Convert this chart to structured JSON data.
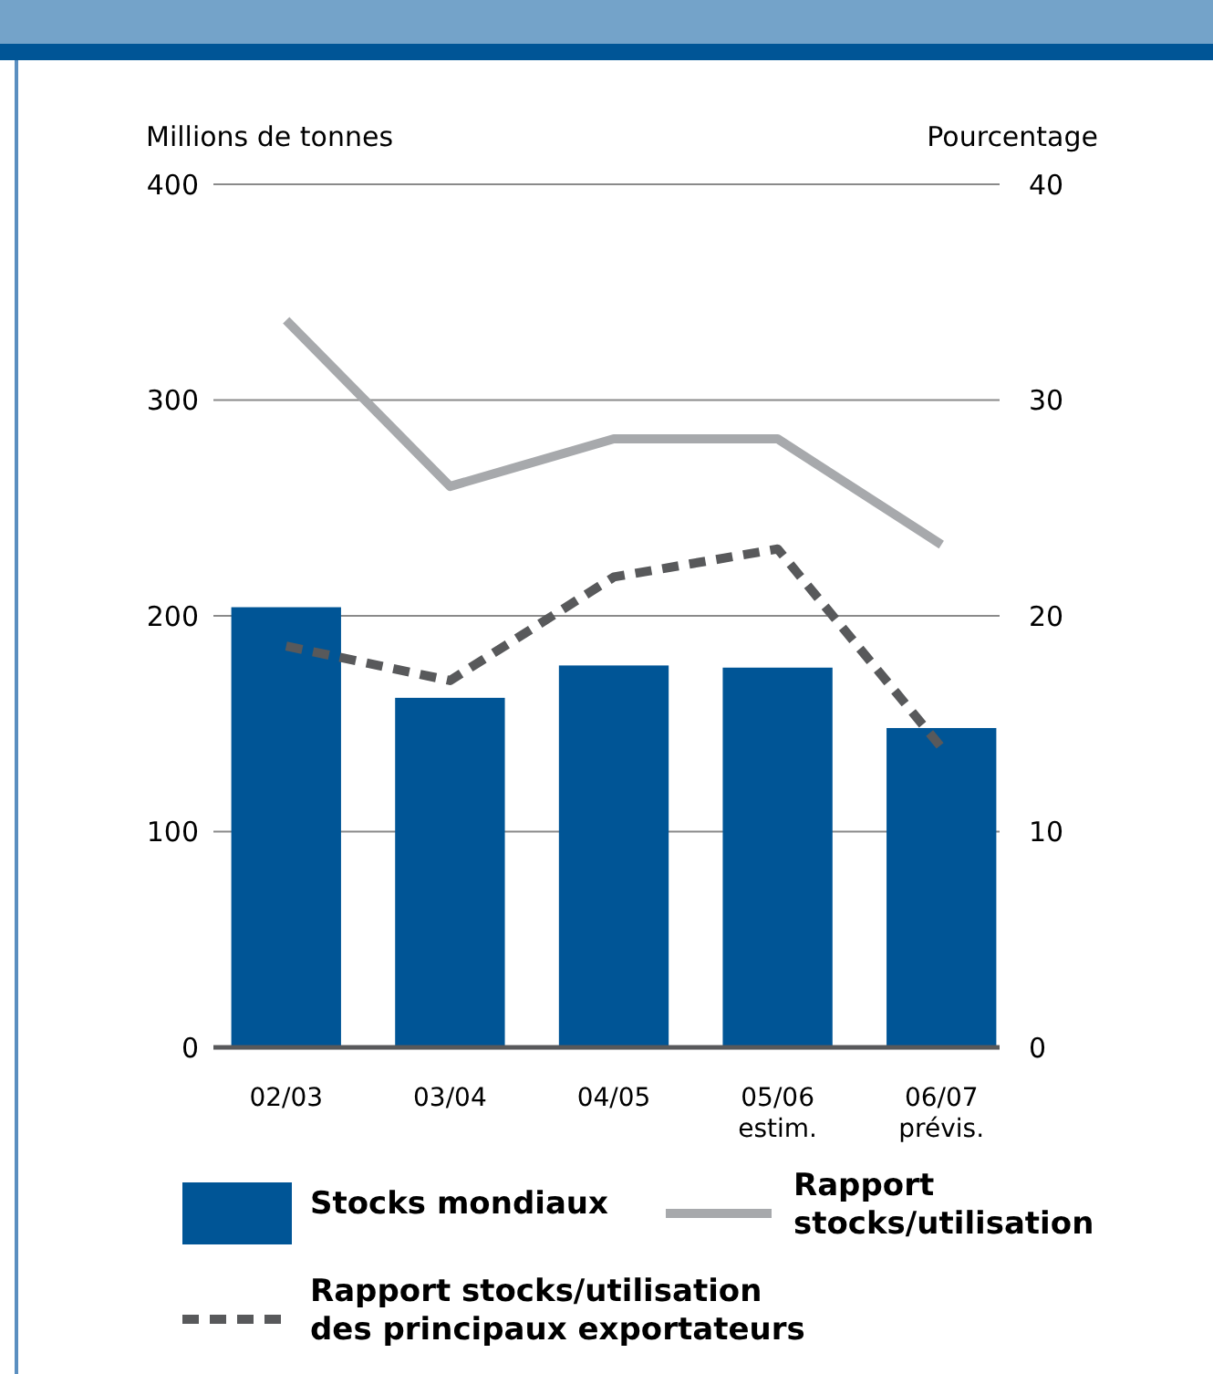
{
  "chart_data": {
    "type": "bar",
    "ylabel": "Millions de  tonnes",
    "y2label": "Pourcentage",
    "categories": [
      "02/03",
      "03/04",
      "04/05",
      "05/06\nestim.",
      "06/07\nprévis."
    ],
    "series": [
      {
        "name": "Stocks mondiaux",
        "color": "#005596",
        "values": [
          204,
          162,
          177,
          176,
          148
        ]
      },
      {
        "name": "Rapport stocks/utilisation",
        "type": "line",
        "axis": "y2",
        "color": "#a7a9ac",
        "line_style": "solid",
        "values": [
          33.7,
          26.0,
          28.2,
          28.2,
          23.3
        ]
      },
      {
        "name": "Rapport stocks/utilisation des principaux exportateurs",
        "type": "line",
        "axis": "y2",
        "color": "#58595b",
        "line_style": "dashed",
        "values": [
          18.6,
          17.0,
          21.8,
          23.1,
          13.9
        ]
      }
    ],
    "ylim": [
      0,
      400
    ],
    "yticks": [
      0,
      100,
      200,
      300,
      400
    ],
    "y2lim": [
      0,
      40
    ],
    "y2ticks": [
      0,
      10,
      20,
      30,
      40
    ],
    "grid": "y",
    "legend": "bottom"
  }
}
